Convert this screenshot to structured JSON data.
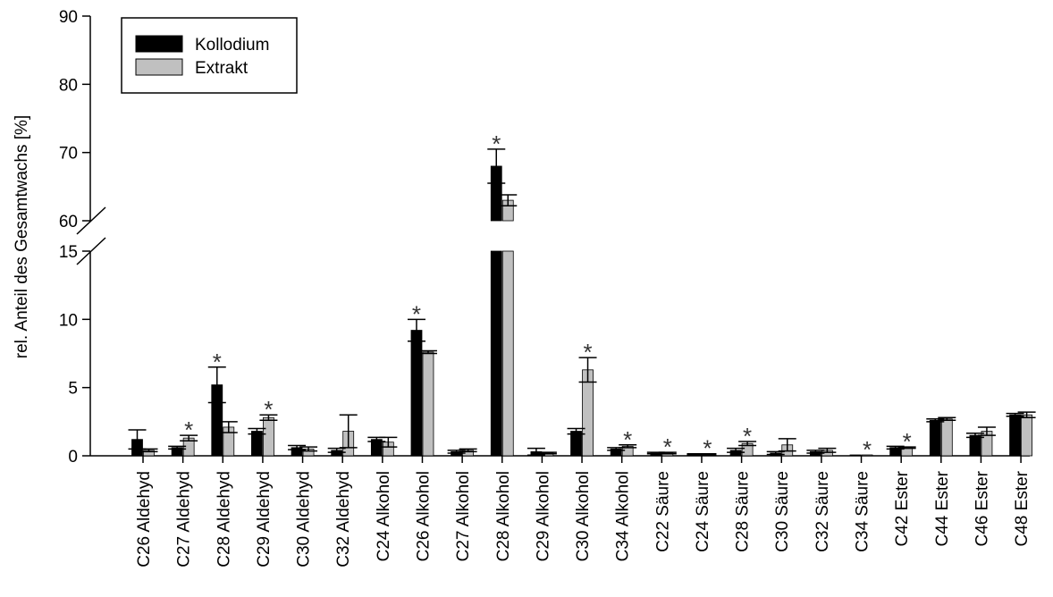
{
  "chart_data": {
    "type": "bar",
    "ylabel": "rel. Anteil des Gesamtwachs [%]",
    "axis_break": {
      "lower_range": [
        0,
        15
      ],
      "upper_range": [
        60,
        90
      ]
    },
    "yticks": [
      0,
      5,
      10,
      15,
      60,
      70,
      80,
      90
    ],
    "ytick_labels": [
      "0",
      "5",
      "10",
      "15",
      "60",
      "70",
      "80",
      "90"
    ],
    "categories": [
      "C26 Aldehyd",
      "C27 Aldehyd",
      "C28 Aldehyd",
      "C29 Aldehyd",
      "C30 Aldehyd",
      "C32 Aldehyd",
      "C24 Alkohol",
      "C26 Alkohol",
      "C27 Alkohol",
      "C28 Alkohol",
      "C29 Alkohol",
      "C30 Alkohol",
      "C34 Alkohol",
      "C22 Säure",
      "C24 Säure",
      "C28 Säure",
      "C30 Säure",
      "C32 Säure",
      "C34 Säure",
      "C42 Ester",
      "C44 Ester",
      "C46 Ester",
      "C48 Ester"
    ],
    "series": [
      {
        "name": "Kollodium",
        "color": "#000000",
        "values": [
          1.2,
          0.6,
          5.2,
          1.8,
          0.6,
          0.4,
          1.2,
          9.2,
          0.3,
          68.0,
          0.3,
          1.8,
          0.5,
          0.2,
          0.1,
          0.4,
          0.2,
          0.3,
          0.05,
          0.6,
          2.6,
          1.5,
          3.0
        ],
        "errors": [
          0.7,
          0.1,
          1.3,
          0.2,
          0.15,
          0.15,
          0.15,
          0.8,
          0.1,
          2.5,
          0.25,
          0.2,
          0.1,
          0.05,
          0.05,
          0.15,
          0.1,
          0.1,
          0.0,
          0.1,
          0.1,
          0.15,
          0.1
        ]
      },
      {
        "name": "Extrakt",
        "color": "#c0c0c0",
        "values": [
          0.4,
          1.3,
          2.1,
          2.8,
          0.5,
          1.8,
          1.0,
          7.6,
          0.4,
          63.0,
          0.2,
          6.3,
          0.7,
          0.2,
          0.1,
          0.9,
          0.8,
          0.4,
          0.05,
          0.6,
          2.7,
          1.8,
          3.0
        ],
        "errors": [
          0.1,
          0.2,
          0.4,
          0.2,
          0.15,
          1.2,
          0.35,
          0.1,
          0.1,
          0.8,
          0.05,
          0.9,
          0.1,
          0.05,
          0.05,
          0.15,
          0.45,
          0.15,
          0.0,
          0.05,
          0.1,
          0.3,
          0.2
        ]
      }
    ],
    "significance_marker": "*",
    "significant": [
      {
        "category": "C27 Aldehyd",
        "series": "Extrakt"
      },
      {
        "category": "C28 Aldehyd",
        "series": "Kollodium"
      },
      {
        "category": "C29 Aldehyd",
        "series": "Extrakt"
      },
      {
        "category": "C26 Alkohol",
        "series": "Kollodium"
      },
      {
        "category": "C28 Alkohol",
        "series": "Kollodium"
      },
      {
        "category": "C30 Alkohol",
        "series": "Extrakt"
      },
      {
        "category": "C34 Alkohol",
        "series": "Extrakt"
      },
      {
        "category": "C22 Säure",
        "series": "Extrakt"
      },
      {
        "category": "C24 Säure",
        "series": "Extrakt"
      },
      {
        "category": "C28 Säure",
        "series": "Extrakt"
      },
      {
        "category": "C34 Säure",
        "series": "Extrakt"
      },
      {
        "category": "C42 Ester",
        "series": "Extrakt"
      }
    ],
    "legend": {
      "position": "top-left",
      "entries": [
        "Kollodium",
        "Extrakt"
      ]
    },
    "grid": false
  }
}
